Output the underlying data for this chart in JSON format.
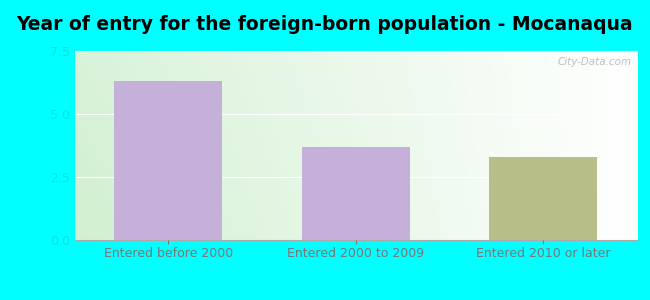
{
  "title": "Year of entry for the foreign-born population - Mocanaqua",
  "categories": [
    "Entered before 2000",
    "Entered 2000 to 2009",
    "Entered 2010 or later"
  ],
  "europe_values": [
    6.3,
    3.7,
    0
  ],
  "other_values": [
    0,
    0,
    3.3
  ],
  "europe_color": "#c4b0d8",
  "other_color": "#b8be88",
  "ylim": [
    0,
    7.5
  ],
  "yticks": [
    0,
    2.5,
    5,
    7.5
  ],
  "bg_top_right": "#ffffff",
  "bg_bottom_left": "#d4edcc",
  "outer_background": "#00ffff",
  "bar_width": 0.32,
  "title_fontsize": 13.5,
  "tick_fontsize": 9,
  "legend_fontsize": 9,
  "watermark": "City-Data.com",
  "ytick_color": "#00e5e5",
  "xtick_color": "#777777"
}
